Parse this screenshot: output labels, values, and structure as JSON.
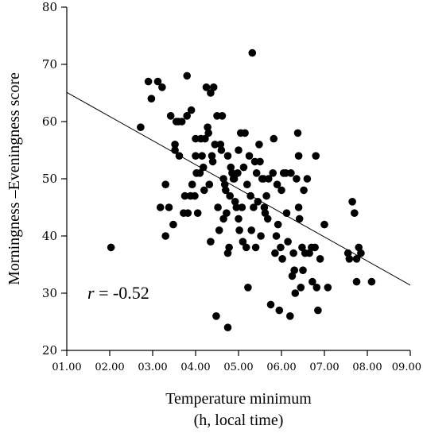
{
  "chart_data": {
    "type": "scatter",
    "xlabel": "Temperature minimum",
    "xlabel_line2": "(h, local time)",
    "ylabel": "Morningness –Eveningness score",
    "annotation_var": "r",
    "annotation_value": " = -0.52",
    "xlim": [
      1.0,
      9.0
    ],
    "ylim": [
      20,
      80
    ],
    "x_ticks": [
      1,
      2,
      3,
      4,
      5,
      6,
      7,
      8,
      9
    ],
    "x_tick_labels": [
      "01.00",
      "02.00",
      "03.00",
      "04.00",
      "05.00",
      "06.00",
      "07.00",
      "08.00",
      "09.00"
    ],
    "y_ticks": [
      20,
      30,
      40,
      50,
      60,
      70,
      80
    ],
    "y_tick_labels": [
      "20",
      "30",
      "40",
      "50",
      "60",
      "70",
      "80"
    ],
    "regression_line": {
      "x": [
        1.0,
        9.0
      ],
      "y": [
        65.1,
        31.4
      ]
    },
    "points": [
      [
        2.03,
        38
      ],
      [
        2.72,
        59
      ],
      [
        2.9,
        67
      ],
      [
        2.97,
        64
      ],
      [
        3.12,
        67
      ],
      [
        3.18,
        45
      ],
      [
        3.22,
        66
      ],
      [
        3.3,
        40
      ],
      [
        3.3,
        49
      ],
      [
        3.38,
        45
      ],
      [
        3.42,
        61
      ],
      [
        3.48,
        42
      ],
      [
        3.52,
        56
      ],
      [
        3.52,
        55
      ],
      [
        3.55,
        60
      ],
      [
        3.6,
        60
      ],
      [
        3.62,
        54
      ],
      [
        3.68,
        60
      ],
      [
        3.72,
        44
      ],
      [
        3.75,
        47
      ],
      [
        3.8,
        61
      ],
      [
        3.8,
        68
      ],
      [
        3.82,
        44
      ],
      [
        3.88,
        47
      ],
      [
        3.9,
        62
      ],
      [
        3.92,
        49
      ],
      [
        3.98,
        47
      ],
      [
        4.0,
        57
      ],
      [
        4.0,
        54
      ],
      [
        4.02,
        51
      ],
      [
        4.05,
        44
      ],
      [
        4.1,
        51
      ],
      [
        4.12,
        57
      ],
      [
        4.15,
        54
      ],
      [
        4.18,
        52
      ],
      [
        4.2,
        48
      ],
      [
        4.22,
        57
      ],
      [
        4.25,
        66
      ],
      [
        4.28,
        59
      ],
      [
        4.3,
        58
      ],
      [
        4.32,
        49
      ],
      [
        4.35,
        65
      ],
      [
        4.35,
        39
      ],
      [
        4.38,
        54
      ],
      [
        4.4,
        53
      ],
      [
        4.42,
        66
      ],
      [
        4.45,
        56
      ],
      [
        4.48,
        26
      ],
      [
        4.5,
        61
      ],
      [
        4.52,
        45
      ],
      [
        4.55,
        41
      ],
      [
        4.58,
        56
      ],
      [
        4.6,
        55
      ],
      [
        4.62,
        61
      ],
      [
        4.65,
        43
      ],
      [
        4.65,
        50
      ],
      [
        4.68,
        49
      ],
      [
        4.7,
        48
      ],
      [
        4.72,
        44
      ],
      [
        4.75,
        24
      ],
      [
        4.75,
        37
      ],
      [
        4.75,
        54
      ],
      [
        4.78,
        38
      ],
      [
        4.8,
        47
      ],
      [
        4.82,
        52
      ],
      [
        4.85,
        51
      ],
      [
        4.88,
        50
      ],
      [
        4.9,
        50
      ],
      [
        4.92,
        46
      ],
      [
        4.95,
        45
      ],
      [
        4.98,
        51
      ],
      [
        5.0,
        55
      ],
      [
        5.0,
        43
      ],
      [
        5.02,
        41
      ],
      [
        5.05,
        58
      ],
      [
        5.08,
        45
      ],
      [
        5.1,
        39
      ],
      [
        5.12,
        52
      ],
      [
        5.15,
        58
      ],
      [
        5.18,
        38
      ],
      [
        5.2,
        49
      ],
      [
        5.22,
        31
      ],
      [
        5.25,
        54
      ],
      [
        5.28,
        47
      ],
      [
        5.3,
        41
      ],
      [
        5.32,
        72
      ],
      [
        5.35,
        45
      ],
      [
        5.38,
        53
      ],
      [
        5.4,
        38
      ],
      [
        5.42,
        51
      ],
      [
        5.45,
        46
      ],
      [
        5.48,
        56
      ],
      [
        5.5,
        53
      ],
      [
        5.52,
        40
      ],
      [
        5.55,
        50
      ],
      [
        5.58,
        50
      ],
      [
        5.6,
        45
      ],
      [
        5.62,
        44
      ],
      [
        5.65,
        47
      ],
      [
        5.68,
        43
      ],
      [
        5.7,
        50
      ],
      [
        5.75,
        28
      ],
      [
        5.8,
        51
      ],
      [
        5.82,
        57
      ],
      [
        5.85,
        37
      ],
      [
        5.88,
        40
      ],
      [
        5.9,
        49
      ],
      [
        5.92,
        42
      ],
      [
        5.95,
        27
      ],
      [
        5.98,
        38
      ],
      [
        6.0,
        48
      ],
      [
        6.02,
        36
      ],
      [
        6.05,
        51
      ],
      [
        6.1,
        51
      ],
      [
        6.12,
        44
      ],
      [
        6.15,
        39
      ],
      [
        6.2,
        26
      ],
      [
        6.22,
        51
      ],
      [
        6.25,
        33
      ],
      [
        6.28,
        37
      ],
      [
        6.3,
        34
      ],
      [
        6.32,
        30
      ],
      [
        6.35,
        50
      ],
      [
        6.38,
        58
      ],
      [
        6.4,
        54
      ],
      [
        6.4,
        45
      ],
      [
        6.42,
        43
      ],
      [
        6.45,
        31
      ],
      [
        6.48,
        38
      ],
      [
        6.5,
        34
      ],
      [
        6.52,
        48
      ],
      [
        6.55,
        37
      ],
      [
        6.6,
        50
      ],
      [
        6.65,
        37
      ],
      [
        6.7,
        38
      ],
      [
        6.72,
        32
      ],
      [
        6.78,
        38
      ],
      [
        6.8,
        54
      ],
      [
        6.82,
        31
      ],
      [
        6.85,
        27
      ],
      [
        6.9,
        36
      ],
      [
        7.0,
        42
      ],
      [
        7.08,
        31
      ],
      [
        7.55,
        37
      ],
      [
        7.58,
        36
      ],
      [
        7.65,
        46
      ],
      [
        7.7,
        44
      ],
      [
        7.75,
        36
      ],
      [
        7.75,
        32
      ],
      [
        7.8,
        38
      ],
      [
        7.85,
        37
      ],
      [
        8.1,
        32
      ]
    ]
  }
}
